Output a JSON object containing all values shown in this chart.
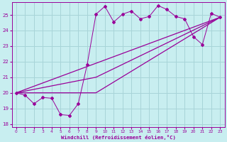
{
  "xlabel": "Windchill (Refroidissement éolien,°C)",
  "background_color": "#c8eef0",
  "grid_color": "#a8d4d8",
  "line_color": "#990099",
  "xlim": [
    -0.5,
    23.5
  ],
  "ylim": [
    17.8,
    25.8
  ],
  "yticks": [
    18,
    19,
    20,
    21,
    22,
    23,
    24,
    25
  ],
  "xticks": [
    0,
    1,
    2,
    3,
    4,
    5,
    6,
    7,
    8,
    9,
    10,
    11,
    12,
    13,
    14,
    15,
    16,
    17,
    18,
    19,
    20,
    21,
    22,
    23
  ],
  "xtick_labels": [
    "0",
    "1",
    "2",
    "3",
    "4",
    "5",
    "6",
    "7",
    "8",
    "9",
    "10",
    "11",
    "12",
    "13",
    "14",
    "15",
    "16",
    "17",
    "18",
    "19",
    "20",
    "21",
    "22",
    "23"
  ],
  "series1_x": [
    0,
    1,
    2,
    3,
    4,
    5,
    6,
    7,
    8,
    9,
    10,
    11,
    12,
    13,
    14,
    15,
    16,
    17,
    18,
    19,
    20,
    21,
    22,
    23
  ],
  "series1_y": [
    20.0,
    19.85,
    19.3,
    19.7,
    19.65,
    18.6,
    18.55,
    19.3,
    21.8,
    25.05,
    25.55,
    24.55,
    25.05,
    25.25,
    24.75,
    24.9,
    25.6,
    25.35,
    24.9,
    24.75,
    23.6,
    23.1,
    25.1,
    24.85
  ],
  "series2_x": [
    0,
    23
  ],
  "series2_y": [
    20.0,
    24.85
  ],
  "series3_x": [
    0,
    9,
    23
  ],
  "series3_y": [
    20.0,
    21.0,
    24.85
  ],
  "series4_x": [
    0,
    9,
    23
  ],
  "series4_y": [
    20.0,
    20.0,
    24.85
  ]
}
